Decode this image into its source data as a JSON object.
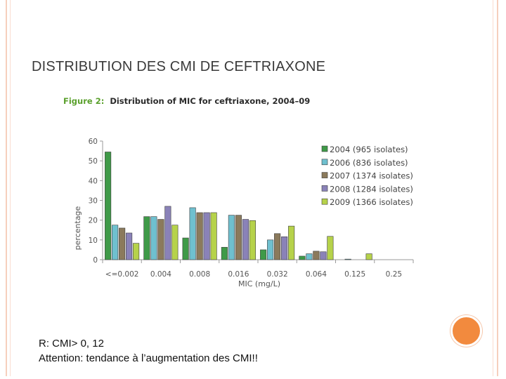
{
  "slide": {
    "title": "DISTRIBUTION DES CMI DE CEFTRIAXONE",
    "footer_line1": "R: CMI> 0, 12",
    "footer_line2": "Attention: tendance à l’augmentation des CMI!!"
  },
  "colors": {
    "figure_label": "#5aa02c",
    "axis": "#9a9a9a"
  },
  "chart_data": {
    "type": "bar",
    "title_label": "Figure 2:",
    "title": "Distribution of MIC for ceftriaxone, 2004–09",
    "xlabel": "MIC (mg/L)",
    "ylabel": "percentage",
    "ylim": [
      0,
      60
    ],
    "yticks": [
      0,
      10,
      20,
      30,
      40,
      50,
      60
    ],
    "categories": [
      "<=0.002",
      "0.004",
      "0.008",
      "0.016",
      "0.032",
      "0.064",
      "0.125",
      "0.25"
    ],
    "legend_position": "top-right",
    "series": [
      {
        "name": "2004 (965 isolates)",
        "color": "#3f9a48",
        "values": [
          54.5,
          21.8,
          11,
          6.3,
          5,
          1.8,
          0,
          0
        ]
      },
      {
        "name": "2006 (836 isolates)",
        "color": "#6fc0cf",
        "values": [
          17.5,
          21.8,
          26.3,
          22.5,
          10,
          3,
          0.3,
          0
        ]
      },
      {
        "name": "2007 (1374 isolates)",
        "color": "#8b7a5c",
        "values": [
          16,
          20.4,
          23.8,
          22.5,
          13.2,
          4.3,
          0,
          0
        ]
      },
      {
        "name": "2008 (1284 isolates)",
        "color": "#8a82b8",
        "values": [
          13.5,
          27,
          23.8,
          20.4,
          11.6,
          4,
          0,
          0
        ]
      },
      {
        "name": "2009 (1366 isolates)",
        "color": "#b6d24a",
        "values": [
          8.3,
          17.5,
          23.8,
          19.8,
          17,
          11.8,
          3,
          0
        ]
      }
    ]
  }
}
